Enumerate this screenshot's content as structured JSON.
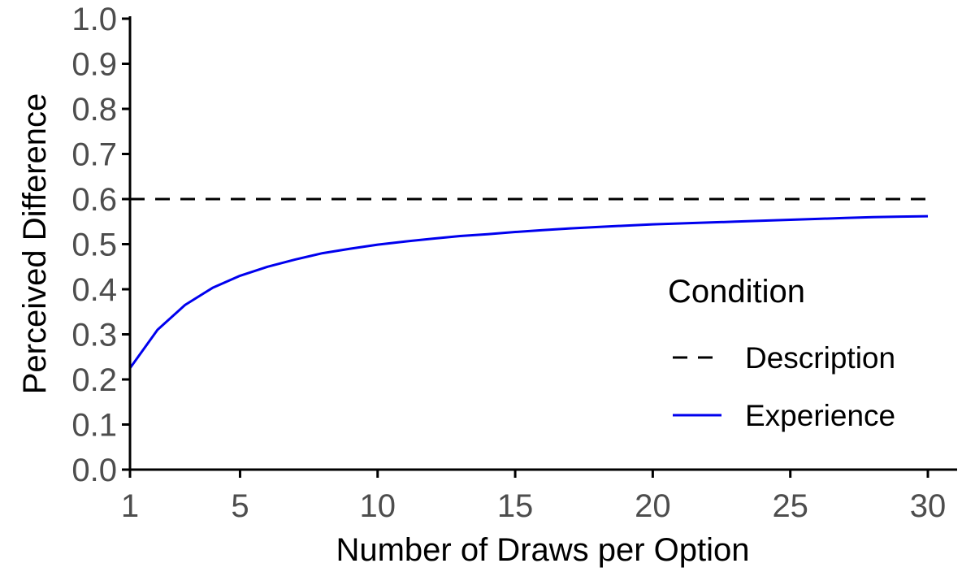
{
  "chart_data": {
    "type": "line",
    "title": "",
    "xlabel": "Number of Draws per Option",
    "ylabel": "Perceived Difference",
    "xlim": [
      1,
      30
    ],
    "ylim": [
      0,
      1
    ],
    "xticks": [
      1,
      5,
      10,
      15,
      20,
      25,
      30
    ],
    "xtick_labels": [
      "1",
      "5",
      "10",
      "15",
      "20",
      "25",
      "30"
    ],
    "yticks": [
      0,
      0.1,
      0.2,
      0.3,
      0.4,
      0.5,
      0.6,
      0.7,
      0.8,
      0.9,
      1.0
    ],
    "ytick_labels": [
      "0.0",
      "0.1",
      "0.2",
      "0.3",
      "0.4",
      "0.5",
      "0.6",
      "0.7",
      "0.8",
      "0.9",
      "1.0"
    ],
    "grid": false,
    "legend": {
      "title": "Condition",
      "placement": "right"
    },
    "series": [
      {
        "name": "Description",
        "color": "#000000",
        "style": "dashed",
        "x": [
          1,
          30
        ],
        "y": [
          0.6,
          0.6
        ]
      },
      {
        "name": "Experience",
        "color": "#0000ee",
        "style": "solid",
        "x": [
          1,
          2,
          3,
          4,
          5,
          6,
          7,
          8,
          9,
          10,
          11,
          12,
          13,
          14,
          15,
          16,
          17,
          18,
          19,
          20,
          21,
          22,
          23,
          24,
          25,
          26,
          27,
          28,
          29,
          30
        ],
        "y": [
          0.225,
          0.31,
          0.365,
          0.403,
          0.43,
          0.45,
          0.466,
          0.48,
          0.49,
          0.499,
          0.506,
          0.512,
          0.518,
          0.522,
          0.527,
          0.531,
          0.535,
          0.538,
          0.541,
          0.544,
          0.546,
          0.548,
          0.55,
          0.552,
          0.554,
          0.556,
          0.558,
          0.56,
          0.561,
          0.562
        ]
      }
    ]
  }
}
